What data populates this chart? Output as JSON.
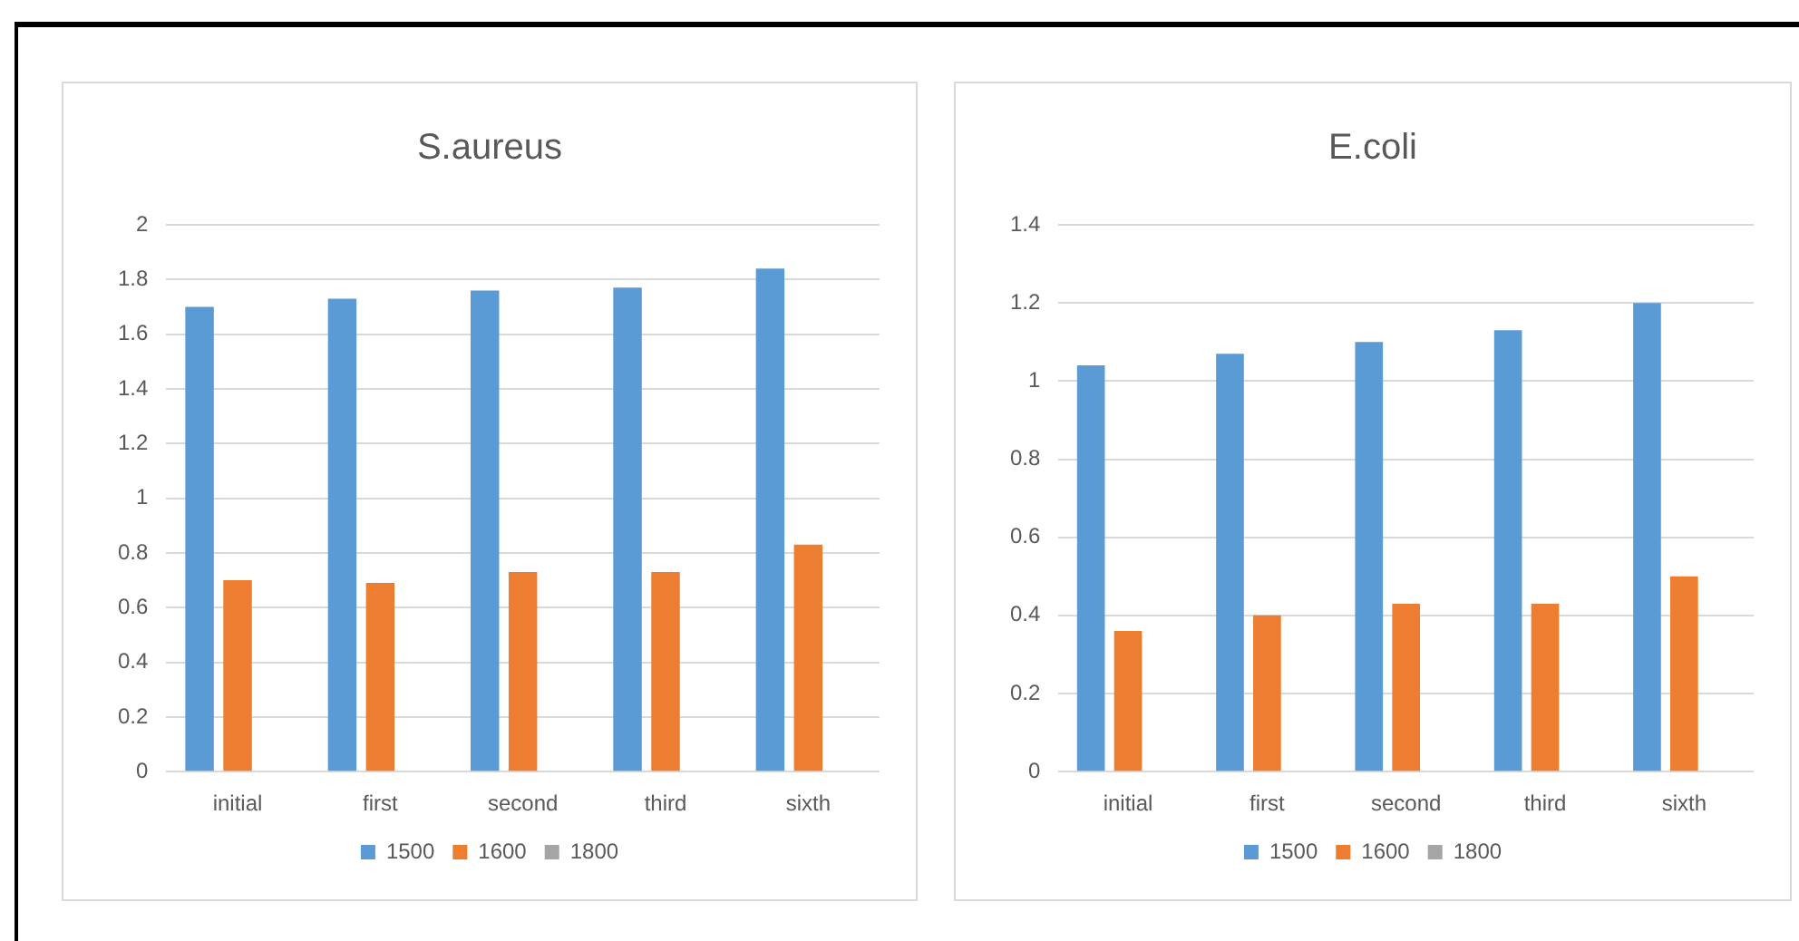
{
  "chart_data": [
    {
      "type": "bar",
      "title": "S.aureus",
      "categories": [
        "initial",
        "first",
        "second",
        "third",
        "sixth"
      ],
      "series": [
        {
          "name": "1500",
          "color": "#5b9bd5",
          "values": [
            1.7,
            1.73,
            1.76,
            1.77,
            1.84
          ]
        },
        {
          "name": "1600",
          "color": "#ed7d31",
          "values": [
            0.7,
            0.69,
            0.73,
            0.73,
            0.83
          ]
        },
        {
          "name": "1800",
          "color": "#a5a5a5",
          "values": [
            0,
            0,
            0,
            0,
            0
          ]
        }
      ],
      "ylim": [
        0,
        2
      ],
      "yticks": [
        0,
        0.2,
        0.4,
        0.6,
        0.8,
        1,
        1.2,
        1.4,
        1.6,
        1.8,
        2
      ],
      "grid": "y",
      "legend": "bottom"
    },
    {
      "type": "bar",
      "title": "E.coli",
      "categories": [
        "initial",
        "first",
        "second",
        "third",
        "sixth"
      ],
      "series": [
        {
          "name": "1500",
          "color": "#5b9bd5",
          "values": [
            1.04,
            1.07,
            1.1,
            1.13,
            1.2
          ]
        },
        {
          "name": "1600",
          "color": "#ed7d31",
          "values": [
            0.36,
            0.4,
            0.43,
            0.43,
            0.5
          ]
        },
        {
          "name": "1800",
          "color": "#a5a5a5",
          "values": [
            0,
            0,
            0,
            0,
            0
          ]
        }
      ],
      "ylim": [
        0,
        1.4
      ],
      "yticks": [
        0,
        0.2,
        0.4,
        0.6,
        0.8,
        1,
        1.2,
        1.4
      ],
      "grid": "y",
      "legend": "bottom"
    }
  ]
}
